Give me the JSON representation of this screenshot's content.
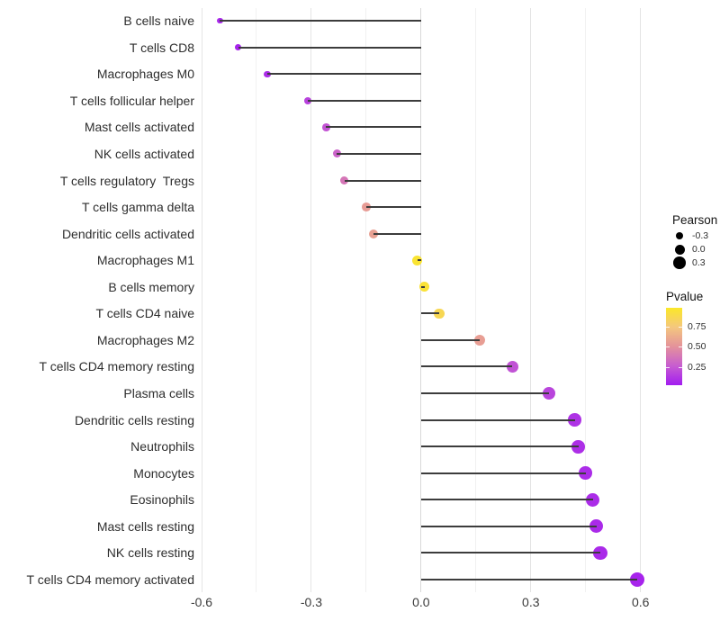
{
  "chart_data": {
    "type": "lollipop",
    "orientation": "horizontal",
    "title": "",
    "xlabel": "",
    "ylabel": "",
    "xlim": [
      -0.605,
      0.65
    ],
    "x_major_ticks": [
      -0.6,
      -0.3,
      0,
      0.3,
      0.6
    ],
    "x_tick_labels": [
      "-0.6",
      "-0.3",
      "0.0",
      "0.3",
      "0.6"
    ],
    "x_minor_ticks": [
      -0.45,
      -0.15,
      0.15,
      0.45
    ],
    "grid": "vertical-only",
    "legend_position": "right",
    "points": [
      {
        "label": "B cells naive",
        "pearson": -0.55,
        "pvalue": 0.07
      },
      {
        "label": "T cells CD8",
        "pearson": -0.5,
        "pvalue": 0.06
      },
      {
        "label": "Macrophages M0",
        "pearson": -0.42,
        "pvalue": 0.09
      },
      {
        "label": "T cells follicular helper",
        "pearson": -0.31,
        "pvalue": 0.17
      },
      {
        "label": "Mast cells activated",
        "pearson": -0.26,
        "pvalue": 0.24
      },
      {
        "label": "NK cells activated",
        "pearson": -0.23,
        "pvalue": 0.3
      },
      {
        "label": "T cells regulatory  Tregs",
        "pearson": -0.21,
        "pvalue": 0.38
      },
      {
        "label": "T cells gamma delta",
        "pearson": -0.15,
        "pvalue": 0.55
      },
      {
        "label": "Dendritic cells activated",
        "pearson": -0.13,
        "pvalue": 0.57
      },
      {
        "label": "Macrophages M1",
        "pearson": -0.01,
        "pvalue": 0.95
      },
      {
        "label": "B cells memory",
        "pearson": 0.01,
        "pvalue": 0.94
      },
      {
        "label": "T cells CD4 naive",
        "pearson": 0.05,
        "pvalue": 0.86
      },
      {
        "label": "Macrophages M2",
        "pearson": 0.16,
        "pvalue": 0.56
      },
      {
        "label": "T cells CD4 memory resting",
        "pearson": 0.25,
        "pvalue": 0.23
      },
      {
        "label": "Plasma cells",
        "pearson": 0.35,
        "pvalue": 0.18
      },
      {
        "label": "Dendritic cells resting",
        "pearson": 0.42,
        "pvalue": 0.11
      },
      {
        "label": "Neutrophils",
        "pearson": 0.43,
        "pvalue": 0.1
      },
      {
        "label": "Monocytes",
        "pearson": 0.45,
        "pvalue": 0.09
      },
      {
        "label": "Eosinophils",
        "pearson": 0.47,
        "pvalue": 0.09
      },
      {
        "label": "Mast cells resting",
        "pearson": 0.48,
        "pvalue": 0.08
      },
      {
        "label": "NK cells resting",
        "pearson": 0.49,
        "pvalue": 0.08
      },
      {
        "label": "T cells CD4 memory activated",
        "pearson": 0.59,
        "pvalue": 0.06
      }
    ]
  },
  "legend": {
    "size": {
      "title": "Pearson",
      "entries": [
        {
          "label": "-0.3",
          "value": -0.3
        },
        {
          "label": "0.0",
          "value": 0
        },
        {
          "label": "0.3",
          "value": 0.3
        }
      ]
    },
    "color": {
      "title": "Pvalue",
      "limits": [
        0.03,
        0.98
      ],
      "ticks": [
        {
          "label": "0.75",
          "value": 0.75
        },
        {
          "label": "0.50",
          "value": 0.5
        },
        {
          "label": "0.25",
          "value": 0.25
        }
      ],
      "gradient_stops": [
        {
          "t": 0,
          "color": "#A21CF0"
        },
        {
          "t": 0.25,
          "color": "#C75DD0"
        },
        {
          "t": 0.5,
          "color": "#E4929B"
        },
        {
          "t": 0.75,
          "color": "#F4C77E"
        },
        {
          "t": 1,
          "color": "#FBE828"
        }
      ]
    }
  },
  "colors": {
    "background": "#FFFFFF",
    "stem": "#3C3C3C",
    "grid_major": "#E4E4E4",
    "grid_minor": "#F1F1F1",
    "grid_zero": "#D8D8D8",
    "axis_text": "#2E2E2E",
    "legend_dot": "#000000"
  }
}
